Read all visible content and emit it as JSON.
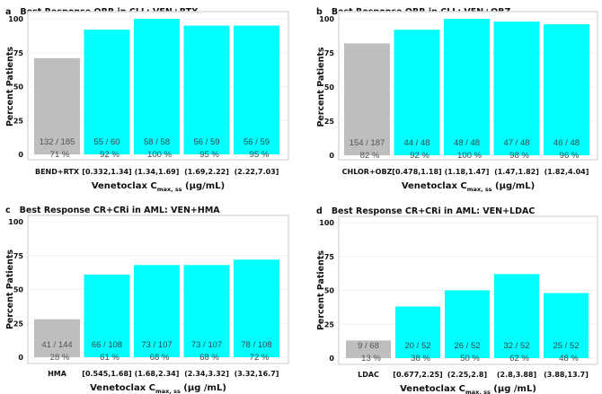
{
  "colors": {
    "reference": "#BEBEBE",
    "venetoclax": "#00FFFF",
    "label_on_cyan": "#3a4a4a",
    "label_on_gray": "#555555"
  },
  "chart_data": [
    {
      "type": "bar",
      "panel": "a",
      "title": "Best Response ORR in CLL: VEN+RTX",
      "ylabel": "Percent Patients",
      "xlabel_main": "Venetoclax C",
      "xlabel_sub": "max, ss",
      "xlabel_unit": " (μg/mL)",
      "ylim": [
        0,
        100
      ],
      "yticks": [
        "0",
        "25",
        "50",
        "75",
        "100"
      ],
      "categories": [
        "BEND+RTX",
        "[0.332,1.34]",
        "(1.34,1.69]",
        "(1.69,2.22]",
        "(2.22,7.03]"
      ],
      "values": [
        71,
        92,
        100,
        95,
        95
      ],
      "counts": [
        "132 / 185",
        "55 / 60",
        "58 / 58",
        "56 / 59",
        "56 / 59"
      ],
      "pct_labels": [
        "71 %",
        "92 %",
        "100 %",
        "95 %",
        "95 %"
      ],
      "groups": [
        "reference",
        "venetoclax",
        "venetoclax",
        "venetoclax",
        "venetoclax"
      ]
    },
    {
      "type": "bar",
      "panel": "b",
      "title": "Best Response ORR in CLL: VEN+OBZ",
      "ylabel": "Percent Patients",
      "xlabel_main": "Venetoclax C",
      "xlabel_sub": "max, ss",
      "xlabel_unit": " (μg/mL)",
      "ylim": [
        0,
        100
      ],
      "yticks": [
        "0",
        "25",
        "50",
        "75",
        "100"
      ],
      "categories": [
        "CHLOR+OBZ",
        "[0.478,1.18]",
        "(1.18,1.47]",
        "(1.47,1.82]",
        "(1.82,4.04]"
      ],
      "values": [
        82,
        92,
        100,
        98,
        96
      ],
      "counts": [
        "154 / 187",
        "44 / 48",
        "48 / 48",
        "47 / 48",
        "46 / 48"
      ],
      "pct_labels": [
        "82 %",
        "92 %",
        "100 %",
        "98 %",
        "96 %"
      ],
      "groups": [
        "reference",
        "venetoclax",
        "venetoclax",
        "venetoclax",
        "venetoclax"
      ]
    },
    {
      "type": "bar",
      "panel": "c",
      "title": "Best Response CR+CRi in AML: VEN+HMA",
      "ylabel": "Percent Patients",
      "xlabel_main": "Venetoclax C",
      "xlabel_sub": "max, ss",
      "xlabel_unit": " (μg /mL)",
      "ylim": [
        0,
        100
      ],
      "yticks": [
        "0",
        "25",
        "50",
        "75",
        "100"
      ],
      "categories": [
        "HMA",
        "[0.545,1.68]",
        "(1.68,2.34]",
        "(2.34,3.32]",
        "(3.32,16.7]"
      ],
      "values": [
        28,
        61,
        68,
        68,
        72
      ],
      "counts": [
        "41 / 144",
        "66 / 108",
        "73 / 107",
        "73 / 107",
        "78 / 108"
      ],
      "pct_labels": [
        "28 %",
        "61 %",
        "68 %",
        "68 %",
        "72 %"
      ],
      "groups": [
        "reference",
        "venetoclax",
        "venetoclax",
        "venetoclax",
        "venetoclax"
      ]
    },
    {
      "type": "bar",
      "panel": "d",
      "title": "Best Response CR+CRi in AML: VEN+LDAC",
      "ylabel": "Percent Patients",
      "xlabel_main": "Venetoclax C",
      "xlabel_sub": "max, ss",
      "xlabel_unit": " (μg /mL)",
      "ylim": [
        0,
        100
      ],
      "yticks": [
        "0",
        "25",
        "50",
        "75",
        "100"
      ],
      "categories": [
        "LDAC",
        "[0.677,2.25]",
        "(2.25,2.8]",
        "(2.8,3.88]",
        "(3.88,13.7]"
      ],
      "values": [
        13,
        38,
        50,
        62,
        48
      ],
      "counts": [
        "9 / 68",
        "20 / 52",
        "26 / 52",
        "32 / 52",
        "25 / 52"
      ],
      "pct_labels": [
        "13 %",
        "38 %",
        "50 %",
        "62 %",
        "48 %"
      ],
      "groups": [
        "reference",
        "venetoclax",
        "venetoclax",
        "venetoclax",
        "venetoclax"
      ]
    }
  ]
}
